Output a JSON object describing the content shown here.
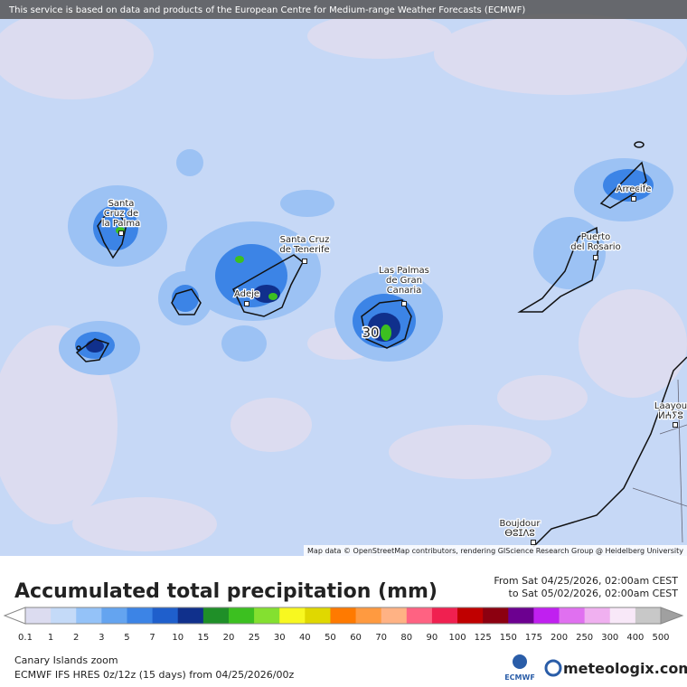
{
  "map": {
    "notice": "This service is based on data and products of the European Centre for Medium-range Weather Forecasts (ECMWF)",
    "labels": [
      {
        "lines": [
          "Santa",
          "Cruz de",
          "la Palma"
        ]
      },
      {
        "lines": [
          "Santa Cruz",
          "de Tenerife"
        ]
      },
      {
        "lines": [
          "Adeje"
        ]
      },
      {
        "lines": [
          "Las Palmas",
          "de Gran",
          "Canaria"
        ]
      },
      {
        "lines": [
          "Puerto",
          "del Rosario"
        ]
      },
      {
        "lines": [
          "Arrecife"
        ]
      },
      {
        "lines": [
          "Laayou",
          "ⵍⵄⵢⵓ"
        ]
      },
      {
        "lines": [
          "Boujdour",
          "ⴱⵓⵊⴷⵓ"
        ]
      }
    ],
    "contour_label": "30",
    "attribution": "Map data © OpenStreetMap contributors, rendering GIScience Research Group @ Heidelberg University"
  },
  "legend": {
    "title": "Accumulated total precipitation (mm)",
    "period": [
      "From Sat 04/25/2026, 02:00am CEST",
      "to Sat 05/02/2026, 02:00am CEST"
    ],
    "ticks": [
      0.1,
      1,
      2,
      3,
      5,
      7,
      10,
      15,
      20,
      25,
      30,
      40,
      50,
      60,
      70,
      80,
      90,
      100,
      125,
      150,
      175,
      200,
      250,
      300,
      400,
      500
    ],
    "colors": [
      "#dcdcf0",
      "#c4daf8",
      "#94c2f8",
      "#64a4f0",
      "#3c84e6",
      "#1f5fcc",
      "#10308c",
      "#1f8f28",
      "#3cc020",
      "#84e030",
      "#f8f820",
      "#e0d800",
      "#ff7a00",
      "#ff9a40",
      "#ffb284",
      "#ff6282",
      "#f02050",
      "#c00000",
      "#8c0010",
      "#6c0090",
      "#c020f0",
      "#e070f0",
      "#f0b0f0",
      "#f8e8f8",
      "#c8c8c8"
    ],
    "under_color": "#ffffff",
    "over_color": "#a0a0a0"
  },
  "footer": {
    "region": "Canary Islands zoom",
    "model": "ECMWF IFS HRES 0z/12z (15 days) from 04/25/2026/00z",
    "logos": [
      "ECMWF",
      "meteologix.com"
    ]
  }
}
